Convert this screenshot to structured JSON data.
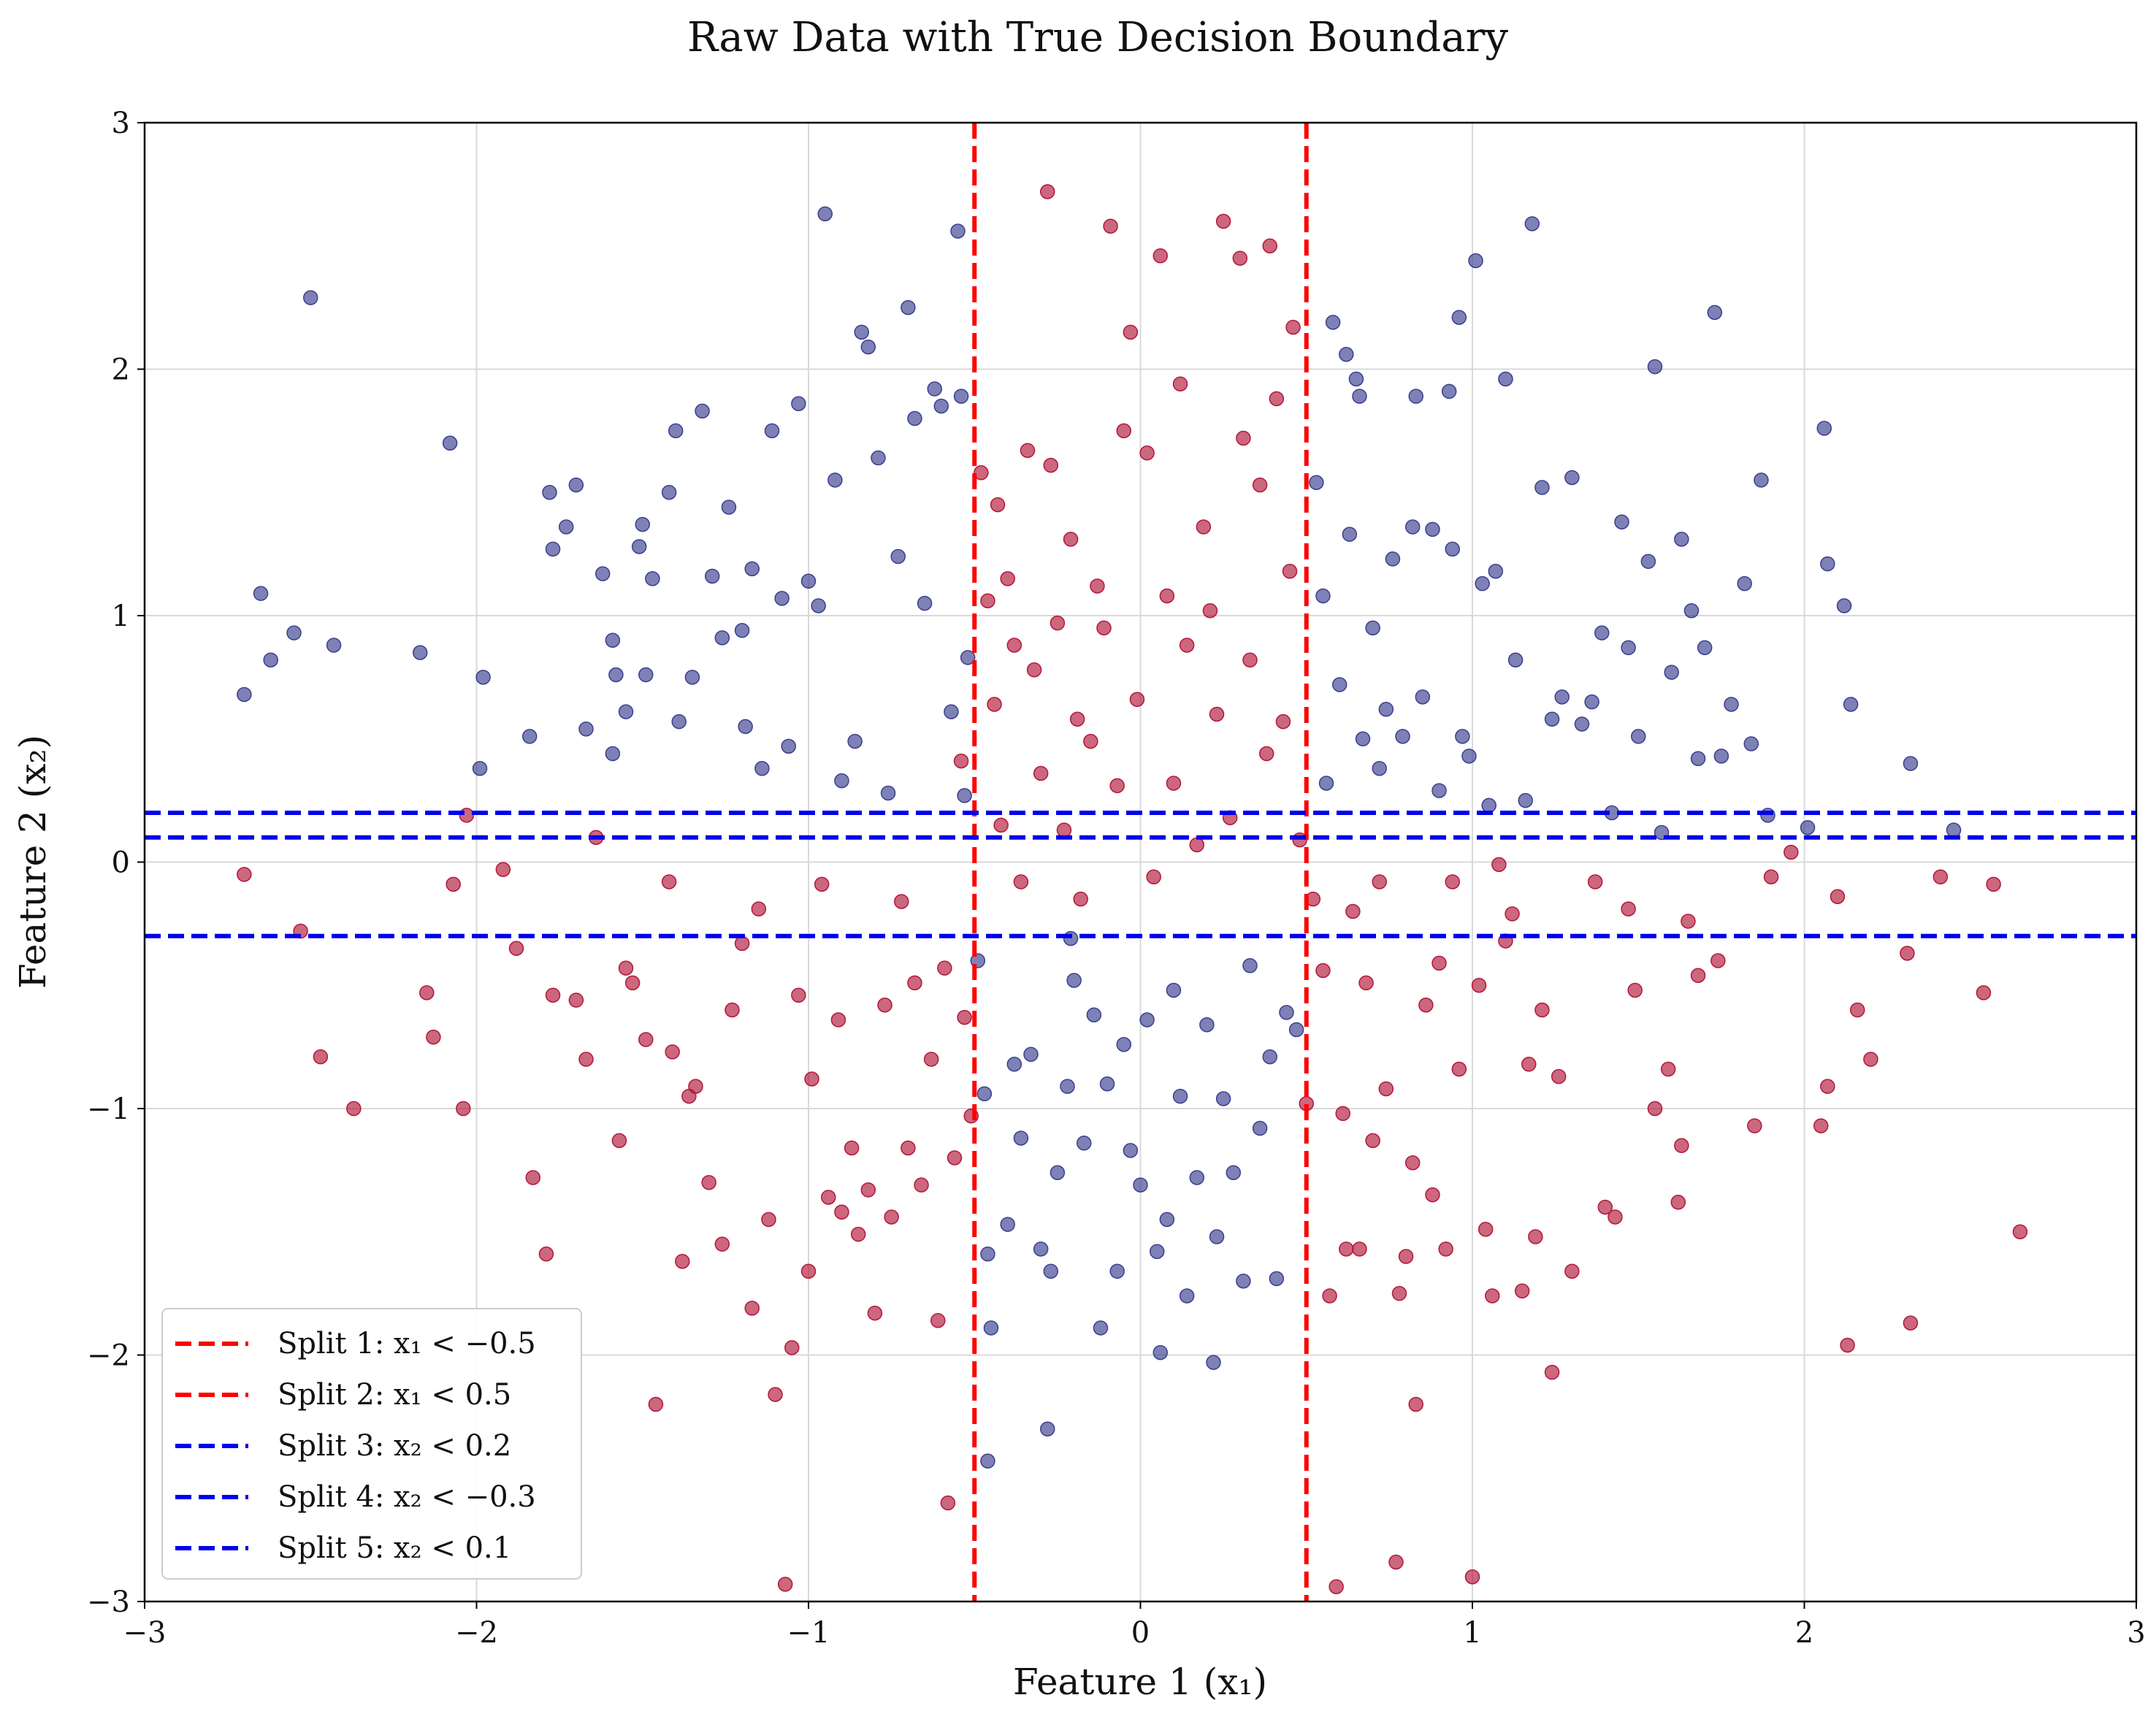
{
  "chart_data": {
    "type": "scatter",
    "title": "Raw Data with True Decision Boundary",
    "xlabel": "Feature 1 (x₁)",
    "ylabel": "Feature 2 (x₂)",
    "xlim": [
      -3,
      3
    ],
    "ylim": [
      -3,
      3
    ],
    "xticks": [
      "−3",
      "−2",
      "−1",
      "0",
      "1",
      "2",
      "3"
    ],
    "yticks": [
      "−3",
      "−2",
      "−1",
      "0",
      "1",
      "2",
      "3"
    ],
    "grid": true,
    "legend_position": "bottom-left",
    "colors": {
      "class_red": "#b2183a",
      "class_blue": "#3b3f8f",
      "split_vertical": "#ff0000",
      "split_horizontal": "#0000ee"
    },
    "splits": [
      {
        "label": "Split 1: x₁ < −0.5",
        "axis": "x",
        "value": -0.5,
        "color": "#ff0000"
      },
      {
        "label": "Split 2: x₁ < 0.5",
        "axis": "x",
        "value": 0.5,
        "color": "#ff0000"
      },
      {
        "label": "Split 3: x₂ < 0.2",
        "axis": "y",
        "value": 0.2,
        "color": "#0000ee"
      },
      {
        "label": "Split 4: x₂ < −0.3",
        "axis": "y",
        "value": -0.3,
        "color": "#0000ee"
      },
      {
        "label": "Split 5: x₂ < 0.1",
        "axis": "y",
        "value": 0.1,
        "color": "#0000ee"
      }
    ],
    "sample_points": {
      "blue": [
        [
          -2.5,
          2.29
        ],
        [
          -2.65,
          1.09
        ],
        [
          -2.7,
          0.68
        ],
        [
          -2.62,
          0.82
        ],
        [
          -2.55,
          0.93
        ],
        [
          -2.43,
          0.88
        ],
        [
          -2.17,
          0.85
        ],
        [
          -2.08,
          1.7
        ],
        [
          -1.99,
          0.38
        ],
        [
          -1.98,
          0.75
        ],
        [
          -1.84,
          0.51
        ],
        [
          -1.78,
          1.5
        ],
        [
          -1.77,
          1.27
        ],
        [
          -1.73,
          1.36
        ],
        [
          -1.7,
          1.53
        ],
        [
          -1.67,
          0.54
        ],
        [
          -1.62,
          1.17
        ],
        [
          -1.59,
          0.9
        ],
        [
          -1.58,
          0.76
        ],
        [
          -1.59,
          0.44
        ],
        [
          -1.55,
          0.61
        ],
        [
          -1.51,
          1.28
        ],
        [
          -1.5,
          1.37
        ],
        [
          -1.49,
          0.76
        ],
        [
          -1.47,
          1.15
        ],
        [
          -1.42,
          1.5
        ],
        [
          -1.4,
          1.75
        ],
        [
          -1.39,
          0.57
        ],
        [
          -1.35,
          0.75
        ],
        [
          -1.32,
          1.83
        ],
        [
          -1.29,
          1.16
        ],
        [
          -1.26,
          0.91
        ],
        [
          -1.24,
          1.44
        ],
        [
          -1.2,
          0.94
        ],
        [
          -1.19,
          0.55
        ],
        [
          -1.17,
          1.19
        ],
        [
          -1.14,
          0.38
        ],
        [
          -1.11,
          1.75
        ],
        [
          -1.08,
          1.07
        ],
        [
          -1.06,
          0.47
        ],
        [
          -1.03,
          1.86
        ],
        [
          -1.0,
          1.14
        ],
        [
          -0.97,
          1.04
        ],
        [
          -0.95,
          2.63
        ],
        [
          -0.92,
          1.55
        ],
        [
          -0.9,
          0.33
        ],
        [
          -0.86,
          0.49
        ],
        [
          -0.84,
          2.15
        ],
        [
          -0.82,
          2.09
        ],
        [
          -0.79,
          1.64
        ],
        [
          -0.76,
          0.28
        ],
        [
          -0.73,
          1.24
        ],
        [
          -0.7,
          2.25
        ],
        [
          -0.68,
          1.8
        ],
        [
          -0.65,
          1.05
        ],
        [
          -0.62,
          1.92
        ],
        [
          -0.6,
          1.85
        ],
        [
          -0.57,
          0.61
        ],
        [
          -0.55,
          2.56
        ],
        [
          -0.54,
          1.89
        ],
        [
          -0.52,
          0.83
        ],
        [
          -0.53,
          0.27
        ],
        [
          -0.49,
          -0.4
        ],
        [
          -0.47,
          -0.94
        ],
        [
          -0.46,
          -1.59
        ],
        [
          -0.45,
          -1.89
        ],
        [
          -0.46,
          -2.43
        ],
        [
          -0.4,
          -1.47
        ],
        [
          -0.38,
          -0.82
        ],
        [
          -0.36,
          -1.12
        ],
        [
          -0.33,
          -0.78
        ],
        [
          -0.3,
          -1.57
        ],
        [
          -0.28,
          -2.3
        ],
        [
          -0.27,
          -1.66
        ],
        [
          -0.25,
          -1.26
        ],
        [
          -0.22,
          -0.91
        ],
        [
          -0.21,
          -0.31
        ],
        [
          -0.2,
          -0.48
        ],
        [
          -0.17,
          -1.14
        ],
        [
          -0.14,
          -0.62
        ],
        [
          -0.12,
          -1.89
        ],
        [
          -0.1,
          -0.9
        ],
        [
          -0.07,
          -1.66
        ],
        [
          -0.05,
          -0.74
        ],
        [
          -0.03,
          -1.17
        ],
        [
          0.0,
          -1.31
        ],
        [
          0.02,
          -0.64
        ],
        [
          0.05,
          -1.58
        ],
        [
          0.06,
          -1.99
        ],
        [
          0.08,
          -1.45
        ],
        [
          0.1,
          -0.52
        ],
        [
          0.12,
          -0.95
        ],
        [
          0.14,
          -1.76
        ],
        [
          0.17,
          -1.28
        ],
        [
          0.2,
          -0.66
        ],
        [
          0.22,
          -2.03
        ],
        [
          0.23,
          -1.52
        ],
        [
          0.25,
          -0.96
        ],
        [
          0.28,
          -1.26
        ],
        [
          0.31,
          -1.7
        ],
        [
          0.33,
          -0.42
        ],
        [
          0.36,
          -1.08
        ],
        [
          0.39,
          -0.79
        ],
        [
          0.41,
          -1.69
        ],
        [
          0.44,
          -0.61
        ],
        [
          0.47,
          -0.68
        ],
        [
          0.53,
          1.54
        ],
        [
          0.55,
          1.08
        ],
        [
          0.56,
          0.32
        ],
        [
          0.58,
          2.19
        ],
        [
          0.6,
          0.72
        ],
        [
          0.62,
          2.06
        ],
        [
          0.63,
          1.33
        ],
        [
          0.65,
          1.96
        ],
        [
          0.66,
          1.89
        ],
        [
          0.67,
          0.5
        ],
        [
          0.7,
          0.95
        ],
        [
          0.72,
          0.38
        ],
        [
          0.74,
          0.62
        ],
        [
          0.76,
          1.23
        ],
        [
          0.79,
          0.51
        ],
        [
          0.82,
          1.36
        ],
        [
          0.83,
          1.89
        ],
        [
          0.85,
          0.67
        ],
        [
          0.88,
          1.35
        ],
        [
          0.9,
          0.29
        ],
        [
          0.93,
          1.91
        ],
        [
          0.94,
          1.27
        ],
        [
          0.96,
          2.21
        ],
        [
          0.97,
          0.51
        ],
        [
          0.99,
          0.43
        ],
        [
          1.01,
          2.44
        ],
        [
          1.03,
          1.13
        ],
        [
          1.05,
          0.23
        ],
        [
          1.07,
          1.18
        ],
        [
          1.1,
          1.96
        ],
        [
          1.13,
          0.82
        ],
        [
          1.16,
          0.25
        ],
        [
          1.18,
          2.59
        ],
        [
          1.21,
          1.52
        ],
        [
          1.24,
          0.58
        ],
        [
          1.27,
          0.67
        ],
        [
          1.3,
          1.56
        ],
        [
          1.33,
          0.56
        ],
        [
          1.36,
          0.65
        ],
        [
          1.39,
          0.93
        ],
        [
          1.42,
          0.2
        ],
        [
          1.45,
          1.38
        ],
        [
          1.47,
          0.87
        ],
        [
          1.5,
          0.51
        ],
        [
          1.53,
          1.22
        ],
        [
          1.55,
          2.01
        ],
        [
          1.57,
          0.12
        ],
        [
          1.6,
          0.77
        ],
        [
          1.63,
          1.31
        ],
        [
          1.66,
          1.02
        ],
        [
          1.68,
          0.42
        ],
        [
          1.7,
          0.87
        ],
        [
          1.73,
          2.23
        ],
        [
          1.75,
          0.43
        ],
        [
          1.78,
          0.64
        ],
        [
          1.82,
          1.13
        ],
        [
          1.84,
          0.48
        ],
        [
          1.87,
          1.55
        ],
        [
          1.89,
          0.19
        ],
        [
          2.01,
          0.14
        ],
        [
          2.06,
          1.76
        ],
        [
          2.07,
          1.21
        ],
        [
          2.12,
          1.04
        ],
        [
          2.14,
          0.64
        ],
        [
          2.32,
          0.4
        ],
        [
          2.45,
          0.13
        ]
      ],
      "red": [
        [
          -2.7,
          -0.05
        ],
        [
          -2.53,
          -0.28
        ],
        [
          -2.47,
          -0.79
        ],
        [
          -2.37,
          -1.0
        ],
        [
          -2.15,
          -0.53
        ],
        [
          -2.13,
          -0.71
        ],
        [
          -2.07,
          -0.09
        ],
        [
          -2.04,
          -1.0
        ],
        [
          -2.03,
          0.19
        ],
        [
          -1.92,
          -0.03
        ],
        [
          -1.88,
          -0.35
        ],
        [
          -1.83,
          -1.28
        ],
        [
          -1.79,
          -1.59
        ],
        [
          -1.77,
          -0.54
        ],
        [
          -1.7,
          -0.56
        ],
        [
          -1.67,
          -0.8
        ],
        [
          -1.64,
          0.1
        ],
        [
          -1.57,
          -1.13
        ],
        [
          -1.55,
          -0.43
        ],
        [
          -1.53,
          -0.49
        ],
        [
          -1.49,
          -0.72
        ],
        [
          -1.46,
          -2.2
        ],
        [
          -1.42,
          -0.08
        ],
        [
          -1.41,
          -0.77
        ],
        [
          -1.38,
          -1.62
        ],
        [
          -1.36,
          -0.95
        ],
        [
          -1.34,
          -0.91
        ],
        [
          -1.3,
          -1.3
        ],
        [
          -1.26,
          -1.55
        ],
        [
          -1.23,
          -0.6
        ],
        [
          -1.2,
          -0.33
        ],
        [
          -1.17,
          -1.81
        ],
        [
          -1.15,
          -0.19
        ],
        [
          -1.12,
          -1.45
        ],
        [
          -1.1,
          -2.16
        ],
        [
          -1.07,
          -2.93
        ],
        [
          -1.05,
          -1.97
        ],
        [
          -1.03,
          -0.54
        ],
        [
          -1.0,
          -1.66
        ],
        [
          -0.99,
          -0.88
        ],
        [
          -0.96,
          -0.09
        ],
        [
          -0.94,
          -1.36
        ],
        [
          -0.91,
          -0.64
        ],
        [
          -0.9,
          -1.42
        ],
        [
          -0.87,
          -1.16
        ],
        [
          -0.85,
          -1.51
        ],
        [
          -0.82,
          -1.33
        ],
        [
          -0.8,
          -1.83
        ],
        [
          -0.77,
          -0.58
        ],
        [
          -0.75,
          -1.44
        ],
        [
          -0.72,
          -0.16
        ],
        [
          -0.7,
          -1.16
        ],
        [
          -0.68,
          -0.49
        ],
        [
          -0.66,
          -1.31
        ],
        [
          -0.63,
          -0.8
        ],
        [
          -0.61,
          -1.86
        ],
        [
          -0.59,
          -0.43
        ],
        [
          -0.58,
          -2.6
        ],
        [
          -0.56,
          -1.2
        ],
        [
          -0.54,
          0.41
        ],
        [
          -0.53,
          -0.63
        ],
        [
          -0.51,
          -1.03
        ],
        [
          -0.48,
          1.58
        ],
        [
          -0.46,
          1.06
        ],
        [
          -0.44,
          0.64
        ],
        [
          -0.43,
          1.45
        ],
        [
          -0.42,
          0.15
        ],
        [
          -0.4,
          1.15
        ],
        [
          -0.38,
          0.88
        ],
        [
          -0.36,
          -0.08
        ],
        [
          -0.34,
          1.67
        ],
        [
          -0.32,
          0.78
        ],
        [
          -0.3,
          0.36
        ],
        [
          -0.28,
          2.72
        ],
        [
          -0.27,
          1.61
        ],
        [
          -0.25,
          0.97
        ],
        [
          -0.23,
          0.13
        ],
        [
          -0.21,
          1.31
        ],
        [
          -0.19,
          0.58
        ],
        [
          -0.18,
          -0.15
        ],
        [
          -0.15,
          0.49
        ],
        [
          -0.13,
          1.12
        ],
        [
          -0.11,
          0.95
        ],
        [
          -0.09,
          2.58
        ],
        [
          -0.07,
          0.31
        ],
        [
          -0.05,
          1.75
        ],
        [
          -0.03,
          2.15
        ],
        [
          -0.01,
          0.66
        ],
        [
          0.02,
          1.66
        ],
        [
          0.04,
          -0.06
        ],
        [
          0.06,
          2.46
        ],
        [
          0.08,
          1.08
        ],
        [
          0.1,
          0.32
        ],
        [
          0.12,
          1.94
        ],
        [
          0.14,
          0.88
        ],
        [
          0.17,
          0.07
        ],
        [
          0.19,
          1.36
        ],
        [
          0.21,
          1.02
        ],
        [
          0.23,
          0.6
        ],
        [
          0.25,
          2.6
        ],
        [
          0.27,
          0.18
        ],
        [
          0.3,
          2.45
        ],
        [
          0.31,
          1.72
        ],
        [
          0.33,
          0.82
        ],
        [
          0.36,
          1.53
        ],
        [
          0.38,
          0.44
        ],
        [
          0.39,
          2.5
        ],
        [
          0.41,
          1.88
        ],
        [
          0.43,
          0.57
        ],
        [
          0.45,
          1.18
        ],
        [
          0.46,
          2.17
        ],
        [
          0.48,
          0.09
        ],
        [
          0.5,
          -0.98
        ],
        [
          0.52,
          -0.15
        ],
        [
          0.55,
          -0.44
        ],
        [
          0.57,
          -1.76
        ],
        [
          0.59,
          -2.94
        ],
        [
          0.61,
          -1.02
        ],
        [
          0.62,
          -1.57
        ],
        [
          0.64,
          -0.2
        ],
        [
          0.66,
          -1.57
        ],
        [
          0.68,
          -0.49
        ],
        [
          0.7,
          -1.13
        ],
        [
          0.72,
          -0.08
        ],
        [
          0.74,
          -0.92
        ],
        [
          0.77,
          -2.84
        ],
        [
          0.78,
          -1.75
        ],
        [
          0.8,
          -1.6
        ],
        [
          0.82,
          -1.22
        ],
        [
          0.83,
          -2.2
        ],
        [
          0.86,
          -0.58
        ],
        [
          0.88,
          -1.35
        ],
        [
          0.9,
          -0.41
        ],
        [
          0.92,
          -1.57
        ],
        [
          0.94,
          -0.08
        ],
        [
          0.96,
          -0.84
        ],
        [
          1.0,
          -2.9
        ],
        [
          1.02,
          -0.5
        ],
        [
          1.04,
          -1.49
        ],
        [
          1.06,
          -1.76
        ],
        [
          1.08,
          -0.01
        ],
        [
          1.1,
          -0.32
        ],
        [
          1.12,
          -0.21
        ],
        [
          1.15,
          -1.74
        ],
        [
          1.17,
          -0.82
        ],
        [
          1.19,
          -1.52
        ],
        [
          1.21,
          -0.6
        ],
        [
          1.24,
          -2.07
        ],
        [
          1.26,
          -0.87
        ],
        [
          1.3,
          -1.66
        ],
        [
          1.37,
          -0.08
        ],
        [
          1.4,
          -1.4
        ],
        [
          1.43,
          -1.44
        ],
        [
          1.47,
          -0.19
        ],
        [
          1.49,
          -0.52
        ],
        [
          1.55,
          -1.0
        ],
        [
          1.59,
          -0.84
        ],
        [
          1.62,
          -1.38
        ],
        [
          1.63,
          -1.15
        ],
        [
          1.65,
          -0.24
        ],
        [
          1.68,
          -0.46
        ],
        [
          1.74,
          -0.4
        ],
        [
          1.85,
          -1.07
        ],
        [
          1.9,
          -0.06
        ],
        [
          1.96,
          0.04
        ],
        [
          2.05,
          -1.07
        ],
        [
          2.07,
          -0.91
        ],
        [
          2.1,
          -0.14
        ],
        [
          2.13,
          -1.96
        ],
        [
          2.16,
          -0.6
        ],
        [
          2.2,
          -0.8
        ],
        [
          2.31,
          -0.37
        ],
        [
          2.32,
          -1.87
        ],
        [
          2.41,
          -0.06
        ],
        [
          2.54,
          -0.53
        ],
        [
          2.57,
          -0.09
        ],
        [
          2.65,
          -1.5
        ]
      ]
    }
  }
}
